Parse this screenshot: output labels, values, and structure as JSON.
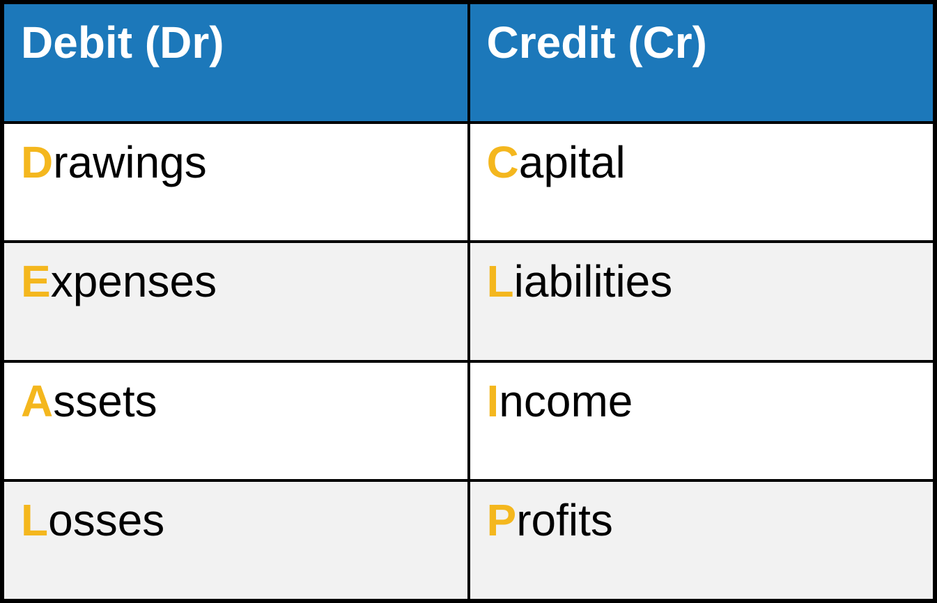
{
  "table": {
    "type": "table",
    "columns": 2,
    "rows": 5,
    "border_color": "#000000",
    "border_width": 4,
    "outer_border_width": 6,
    "header": {
      "background_color": "#1c78ba",
      "text_color": "#ffffff",
      "font_size": 64,
      "font_weight": "bold",
      "cells": [
        "Debit (Dr)",
        "Credit (Cr)"
      ]
    },
    "body": {
      "font_size": 64,
      "text_color": "#000000",
      "first_letter_color": "#f4b71e",
      "first_letter_weight": "bold",
      "row_bg_white": "#ffffff",
      "row_bg_grey": "#f2f2f2",
      "rows": [
        {
          "bg": "white",
          "cells": [
            {
              "first": "D",
              "rest": "rawings"
            },
            {
              "first": "C",
              "rest": "apital"
            }
          ]
        },
        {
          "bg": "grey",
          "cells": [
            {
              "first": "E",
              "rest": "xpenses"
            },
            {
              "first": "L",
              "rest": "iabilities"
            }
          ]
        },
        {
          "bg": "white",
          "cells": [
            {
              "first": "A",
              "rest": "ssets"
            },
            {
              "first": "I",
              "rest": "ncome"
            }
          ]
        },
        {
          "bg": "grey",
          "cells": [
            {
              "first": "L",
              "rest": "osses"
            },
            {
              "first": "P",
              "rest": "rofits"
            }
          ]
        }
      ]
    }
  }
}
